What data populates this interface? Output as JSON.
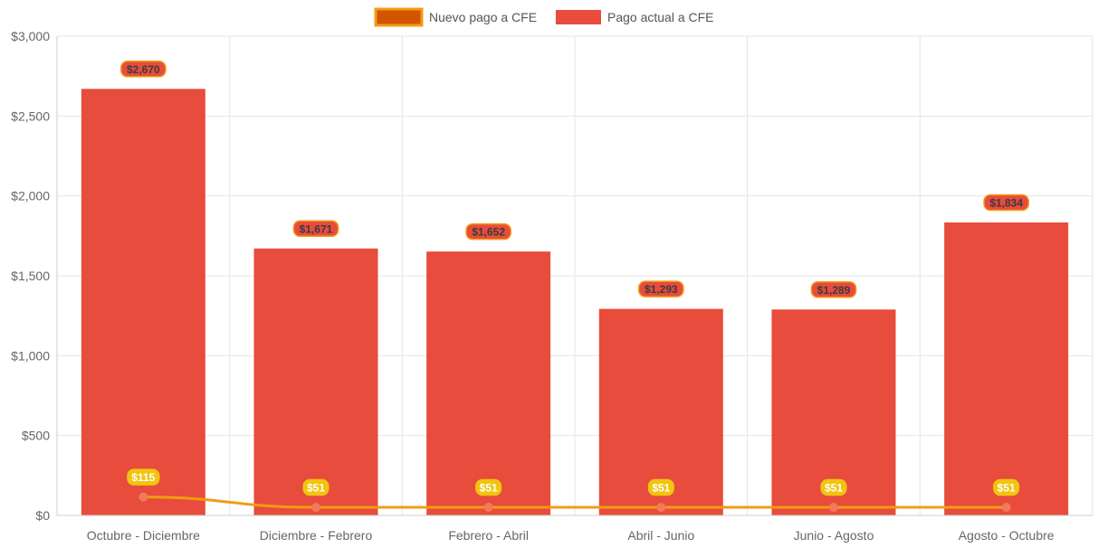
{
  "chart_data": {
    "type": "bar",
    "categories": [
      "Octubre - Diciembre",
      "Diciembre - Febrero",
      "Febrero - Abril",
      "Abril - Junio",
      "Junio - Agosto",
      "Agosto - Octubre"
    ],
    "series": [
      {
        "name": "Pago actual a CFE",
        "type": "bar",
        "values": [
          2670,
          1671,
          1652,
          1293,
          1289,
          1834
        ],
        "labels": [
          "$2,670",
          "$1,671",
          "$1,652",
          "$1,293",
          "$1,289",
          "$1,834"
        ],
        "color": "#e74c3c"
      },
      {
        "name": "Nuevo pago a CFE",
        "type": "line",
        "values": [
          115,
          51,
          51,
          51,
          51,
          51
        ],
        "labels": [
          "$115",
          "$51",
          "$51",
          "$51",
          "$51",
          "$51"
        ],
        "color": "#f39c12"
      }
    ],
    "legend": [
      "Nuevo pago a CFE",
      "Pago actual a CFE"
    ],
    "legend_position": "top",
    "y_ticks": [
      0,
      500,
      1000,
      1500,
      2000,
      2500,
      3000
    ],
    "y_tick_labels": [
      "$0",
      "$500",
      "$1,000",
      "$1,500",
      "$2,000",
      "$2,500",
      "$3,000"
    ],
    "ylim": [
      0,
      3000
    ],
    "grid": true,
    "title": "",
    "xlabel": "",
    "ylabel": ""
  },
  "colors": {
    "bar_fill": "#e74c3c",
    "bar_label_bg": "#e74c3c",
    "bar_label_border": "#f39c12",
    "line_stroke": "#f39c12",
    "line_point": "#f17a5b",
    "line_label_bg": "#f1c40f",
    "legend_line_fill": "#d35400",
    "legend_line_border": "#f39c12",
    "grid": "#e5e5e5",
    "axis": "#cfcfcf"
  }
}
